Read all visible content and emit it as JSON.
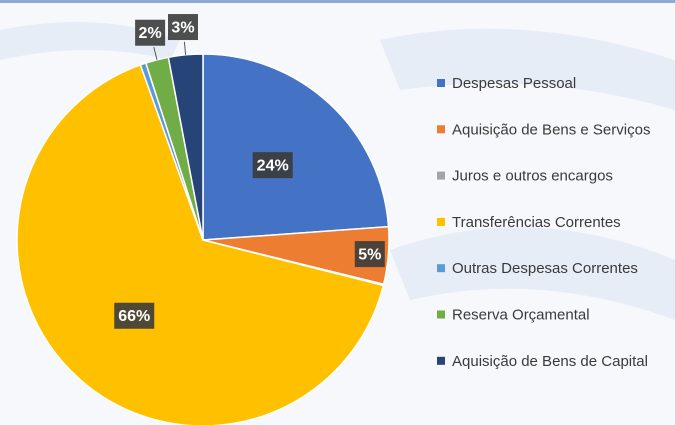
{
  "chart_data": {
    "type": "pie",
    "categories": [
      "Despesas Pessoal",
      "Aquisição de Bens e Serviços",
      "Juros e outros encargos",
      "Transferências Correntes",
      "Outras Despesas Correntes",
      "Reserva Orçamental",
      "Aquisição de Bens de Capital"
    ],
    "values": [
      24,
      5,
      0.1,
      66,
      0.5,
      2,
      3
    ],
    "value_labels": [
      "24%",
      "5%",
      null,
      "66%",
      null,
      "2%",
      "3%"
    ],
    "colors": [
      "#4472c4",
      "#ed7d31",
      "#a5a5a5",
      "#ffc000",
      "#5b9bd5",
      "#70ad47",
      "#264478"
    ],
    "legend": "right"
  }
}
